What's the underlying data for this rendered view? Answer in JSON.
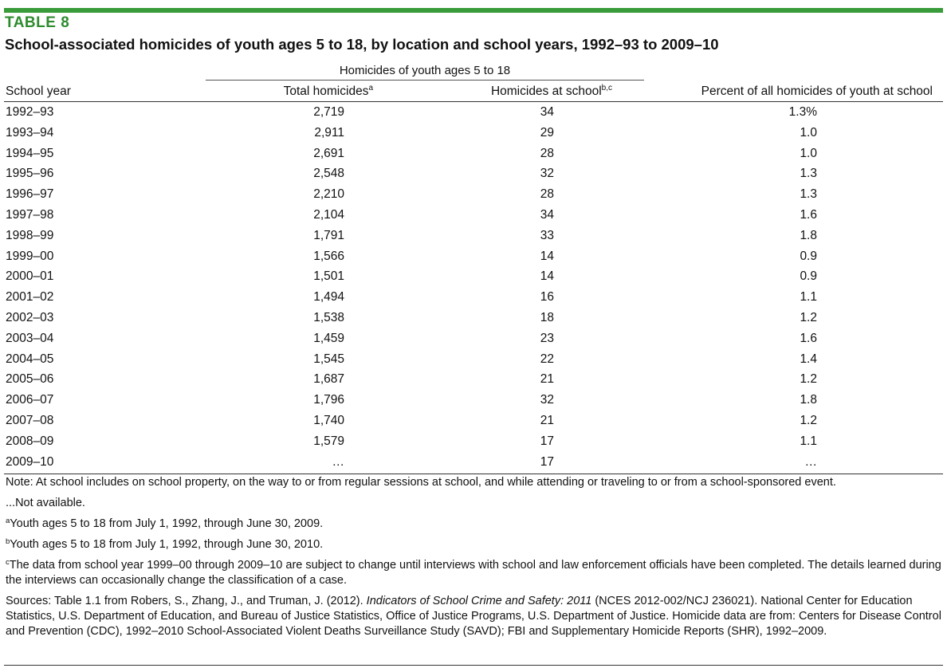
{
  "table_label": "TABLE 8",
  "table_title": "School-associated homicides of youth ages 5 to 18, by location and school years, 1992–93 to 2009–10",
  "group_header": "Homicides of youth ages 5 to 18",
  "columns": {
    "year": "School year",
    "total": "Total homicides",
    "total_sup": "a",
    "school": "Homicides at school",
    "school_sup": "b,c",
    "pct": "Percent of all homicides of youth at school"
  },
  "rows": [
    {
      "year": "1992–93",
      "total": "2,719",
      "school": "34",
      "pct": "1.3%"
    },
    {
      "year": "1993–94",
      "total": "2,911",
      "school": "29",
      "pct": "1.0"
    },
    {
      "year": "1994–95",
      "total": "2,691",
      "school": "28",
      "pct": "1.0"
    },
    {
      "year": "1995–96",
      "total": "2,548",
      "school": "32",
      "pct": "1.3"
    },
    {
      "year": "1996–97",
      "total": "2,210",
      "school": "28",
      "pct": "1.3"
    },
    {
      "year": "1997–98",
      "total": "2,104",
      "school": "34",
      "pct": "1.6"
    },
    {
      "year": "1998–99",
      "total": "1,791",
      "school": "33",
      "pct": "1.8"
    },
    {
      "year": "1999–00",
      "total": "1,566",
      "school": "14",
      "pct": "0.9"
    },
    {
      "year": "2000–01",
      "total": "1,501",
      "school": "14",
      "pct": "0.9"
    },
    {
      "year": "2001–02",
      "total": "1,494",
      "school": "16",
      "pct": "1.1"
    },
    {
      "year": "2002–03",
      "total": "1,538",
      "school": "18",
      "pct": "1.2"
    },
    {
      "year": "2003–04",
      "total": "1,459",
      "school": "23",
      "pct": "1.6"
    },
    {
      "year": "2004–05",
      "total": "1,545",
      "school": "22",
      "pct": "1.4"
    },
    {
      "year": "2005–06",
      "total": "1,687",
      "school": "21",
      "pct": "1.2"
    },
    {
      "year": "2006–07",
      "total": "1,796",
      "school": "32",
      "pct": "1.8"
    },
    {
      "year": "2007–08",
      "total": "1,740",
      "school": "21",
      "pct": "1.2"
    },
    {
      "year": "2008–09",
      "total": "1,579",
      "school": "17",
      "pct": "1.1"
    },
    {
      "year": "2009–10",
      "total": "…",
      "school": "17",
      "pct": "…"
    }
  ],
  "notes": {
    "note": "Note: At school includes on school property, on the way to or from regular sessions at school, and while attending or traveling to or from a school-sponsored  event.",
    "not_available": "...Not available.",
    "fn_a_sup": "a",
    "fn_a": "Youth ages 5 to 18 from July 1, 1992, through June 30, 2009.",
    "fn_b_sup": "b",
    "fn_b": "Youth ages 5 to 18 from July 1, 1992, through June 30, 2010.",
    "fn_c_sup": "c",
    "fn_c": "The data from school year 1999–00 through 2009–10  are subject to change until interviews with school and law enforcement officials have been completed. The details learned during the interviews can occasionally change the classification of a case.",
    "sources_prefix": "Sources: Table 1.1 from Robers, S., Zhang, J., and Truman, J. (2012). ",
    "sources_italic": "Indicators of School Crime and Safety: 2011",
    "sources_suffix": " (NCES 2012-002/NCJ 236021). National Center for Education Statistics, U.S. Department of Education, and Bureau of Justice Statistics, Office of Justice Programs, U.S. Department of Justice. Homicide data are from: Centers for Disease Control and Prevention (CDC), 1992–2010 School-Associated Violent Deaths Surveillance Study (SAVD); FBI and Supplementary Homicide Reports (SHR), 1992–2009."
  },
  "colors": {
    "accent_green": "#3a9b3a"
  }
}
